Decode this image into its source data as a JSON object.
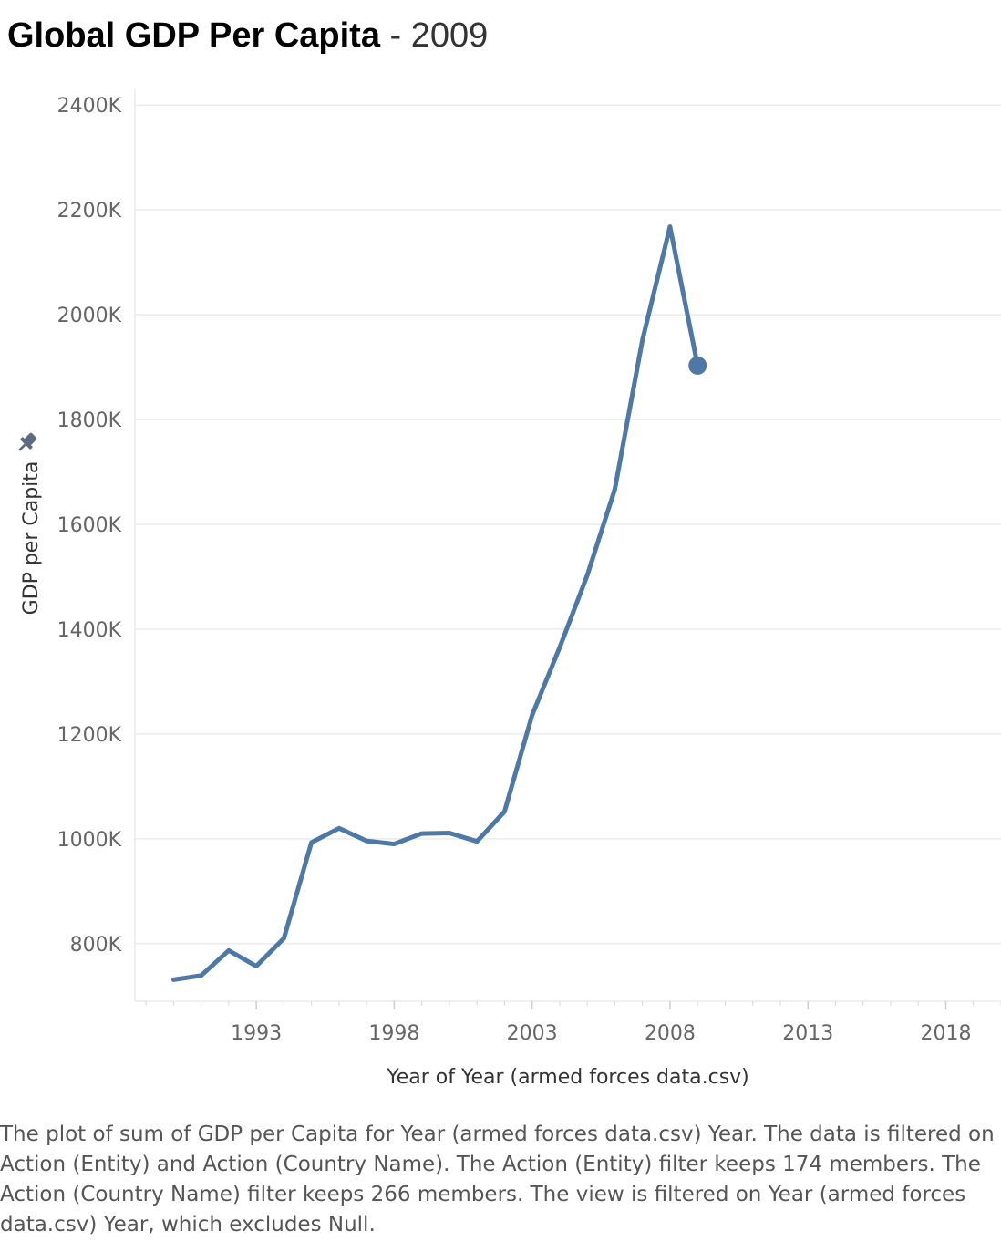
{
  "title": {
    "main": "Global GDP Per Capita",
    "separator": " - ",
    "year": "2009"
  },
  "caption": "The plot of sum of GDP per Capita for Year (armed forces data.csv) Year. The data is filtered on Action (Entity) and Action (Country Name). The Action (Entity) filter keeps 174 members. The Action (Country Name) filter keeps 266 members. The view is filtered on Year (armed forces data.csv) Year, which excludes Null.",
  "colors": {
    "line": "#4e79a7",
    "grid": "#ebebeb",
    "pin": "#5b6b80"
  },
  "icons": {
    "axis_pin": "pin-icon"
  },
  "chart_data": {
    "type": "line",
    "title": "Global GDP Per Capita - 2009",
    "xlabel": "Year of Year (armed forces data.csv)",
    "ylabel": "GDP per Capita",
    "xlim": [
      1988.6,
      2020
    ],
    "ylim": [
      690,
      2430
    ],
    "x_ticks": [
      1993,
      1998,
      2003,
      2008,
      2013,
      2018
    ],
    "x_tick_labels": [
      "1993",
      "1998",
      "2003",
      "2008",
      "2013",
      "2018"
    ],
    "y_ticks": [
      800,
      1000,
      1200,
      1400,
      1600,
      1800,
      2000,
      2200,
      2400
    ],
    "y_tick_labels": [
      "800K",
      "1000K",
      "1200K",
      "1400K",
      "1600K",
      "1800K",
      "2000K",
      "2200K",
      "2400K"
    ],
    "grid": true,
    "highlight_point": {
      "x": 2009,
      "y": 1903
    },
    "series": [
      {
        "x": [
          1990,
          1991,
          1992,
          1993,
          1994,
          1995,
          1996,
          1997,
          1998,
          1999,
          2000,
          2001,
          2002,
          2003,
          2004,
          2005,
          2006,
          2007,
          2008,
          2009
        ],
        "values": [
          731,
          739,
          787,
          757,
          810,
          993,
          1020,
          996,
          990,
          1010,
          1011,
          995,
          1052,
          1236,
          1365,
          1503,
          1667,
          1952,
          2168,
          1903
        ]
      }
    ]
  }
}
